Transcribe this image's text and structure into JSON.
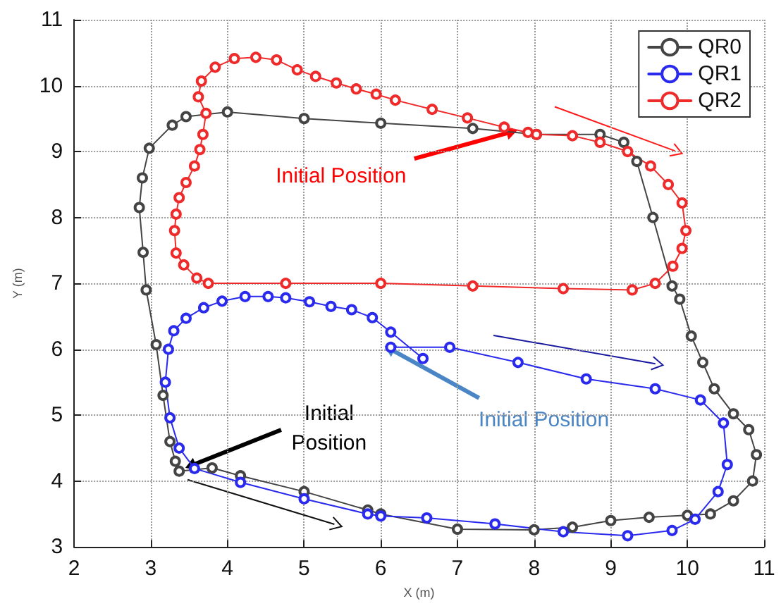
{
  "chart_data": {
    "type": "line",
    "xlabel": "X (m)",
    "ylabel": "Y (m)",
    "xlim": [
      2,
      11
    ],
    "xticks": [
      2,
      3,
      4,
      5,
      6,
      7,
      8,
      9,
      10,
      11
    ],
    "ylim": [
      3,
      11
    ],
    "yticks": [
      3,
      4,
      5,
      6,
      7,
      8,
      9,
      10,
      11
    ],
    "grid": true,
    "legend": "top right",
    "marker": "circle",
    "line_style": "solid",
    "series": [
      {
        "name": "QR0",
        "color": "#444444",
        "x": [
          3.37,
          3.8,
          4.17,
          5.0,
          5.83,
          6.0,
          7.0,
          8.0,
          8.5,
          9.0,
          9.5,
          10.0,
          10.3,
          10.6,
          10.85,
          10.9,
          10.8,
          10.6,
          10.35,
          10.2,
          10.05,
          9.9,
          9.8,
          9.55,
          9.34,
          9.17,
          8.86,
          8.03,
          7.2,
          6.0,
          5.0,
          4.0,
          3.46,
          3.28,
          2.98,
          2.89,
          2.85,
          2.9,
          2.94,
          3.07,
          3.16,
          3.25,
          3.32
        ],
        "values": [
          4.15,
          4.2,
          4.08,
          3.84,
          3.56,
          3.5,
          3.27,
          3.26,
          3.3,
          3.4,
          3.45,
          3.48,
          3.5,
          3.7,
          4.0,
          4.4,
          4.78,
          5.02,
          5.4,
          5.8,
          6.2,
          6.76,
          6.96,
          8.0,
          8.85,
          9.14,
          9.26,
          9.26,
          9.35,
          9.43,
          9.5,
          9.6,
          9.53,
          9.4,
          9.05,
          8.6,
          8.15,
          7.47,
          6.9,
          6.07,
          5.3,
          4.6,
          4.3
        ]
      },
      {
        "name": "QR1",
        "color": "#2a2aee",
        "x": [
          6.13,
          6.9,
          7.79,
          8.68,
          9.58,
          10.17,
          10.47,
          10.52,
          10.4,
          10.1,
          9.8,
          9.22,
          8.38,
          7.49,
          6.6,
          6.0,
          5.83,
          5.0,
          4.17,
          3.57,
          3.37,
          3.25,
          3.19,
          3.23,
          3.3,
          3.46,
          3.69,
          3.93,
          4.23,
          4.53,
          4.76,
          5.07,
          5.35,
          5.62,
          5.89,
          6.13,
          6.55
        ],
        "values": [
          6.03,
          6.03,
          5.8,
          5.55,
          5.4,
          5.23,
          4.88,
          4.25,
          3.84,
          3.42,
          3.25,
          3.17,
          3.23,
          3.35,
          3.44,
          3.47,
          3.5,
          3.73,
          3.98,
          4.19,
          4.5,
          4.96,
          5.5,
          6.0,
          6.28,
          6.47,
          6.63,
          6.73,
          6.8,
          6.8,
          6.78,
          6.72,
          6.65,
          6.6,
          6.48,
          6.26,
          5.86
        ]
      },
      {
        "name": "QR2",
        "color": "#ee2a2a",
        "x": [
          8.03,
          8.5,
          8.86,
          9.22,
          9.52,
          9.75,
          9.93,
          9.98,
          9.93,
          9.81,
          9.58,
          9.28,
          8.38,
          7.2,
          6.0,
          4.76,
          3.75,
          3.6,
          3.43,
          3.33,
          3.31,
          3.33,
          3.37,
          3.46,
          3.57,
          3.64,
          3.68,
          3.72,
          3.62,
          3.66,
          3.84,
          4.09,
          4.37,
          4.64,
          4.91,
          5.15,
          5.42,
          5.68,
          5.94,
          6.19,
          6.67,
          7.13,
          7.61,
          7.92
        ],
        "values": [
          9.26,
          9.24,
          9.14,
          9.0,
          8.78,
          8.5,
          8.22,
          7.8,
          7.53,
          7.26,
          7.0,
          6.9,
          6.92,
          6.96,
          7.0,
          7.0,
          7.0,
          7.08,
          7.28,
          7.46,
          7.8,
          8.05,
          8.3,
          8.53,
          8.78,
          9.03,
          9.26,
          9.58,
          9.83,
          10.07,
          10.28,
          10.41,
          10.43,
          10.39,
          10.24,
          10.14,
          10.04,
          9.95,
          9.87,
          9.78,
          9.64,
          9.51,
          9.37,
          9.29
        ]
      }
    ],
    "annotations": [
      {
        "text": "Initial Position",
        "x": 7.78,
        "y": 9.32
      },
      {
        "text": "Initial Position",
        "x": 6.05,
        "y": 6.05
      },
      {
        "text": "Initial\nPosition",
        "x": 3.45,
        "y": 4.2
      }
    ]
  }
}
